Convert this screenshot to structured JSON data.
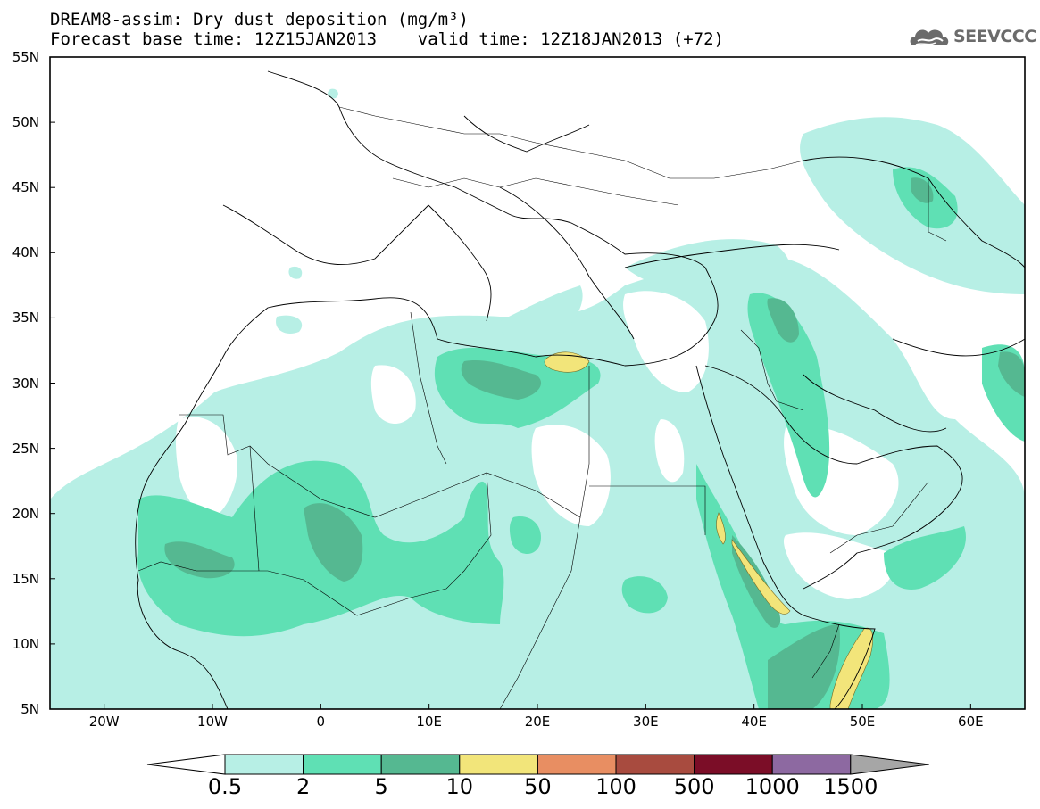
{
  "header": {
    "title_line1": "DREAM8-assim: Dry dust deposition (mg/m³)",
    "title_line2": "Forecast base time: 12Z15JAN2013    valid time: 12Z18JAN2013 (+72)"
  },
  "logo": {
    "text": "SEEVCCC",
    "icon": "cloud-logo-icon"
  },
  "map": {
    "lat_labels": [
      "55N",
      "50N",
      "45N",
      "40N",
      "35N",
      "30N",
      "25N",
      "20N",
      "15N",
      "10N",
      "5N"
    ],
    "lon_labels": [
      "20W",
      "10W",
      "0",
      "10E",
      "20E",
      "30E",
      "40E",
      "50E",
      "60E"
    ],
    "extent": {
      "lon": [
        -25,
        65
      ],
      "lat": [
        5,
        55
      ]
    }
  },
  "colorbar": {
    "labels": [
      "0.5",
      "2",
      "5",
      "10",
      "50",
      "100",
      "500",
      "1000",
      "1500"
    ],
    "colors": [
      "#b7efe5",
      "#5fe0b4",
      "#55b891",
      "#f2e57a",
      "#e88e62",
      "#a84b3f",
      "#7b0d27",
      "#8d69a1"
    ],
    "under_color": "#ffffff",
    "over_color": "#a6a6a6"
  }
}
